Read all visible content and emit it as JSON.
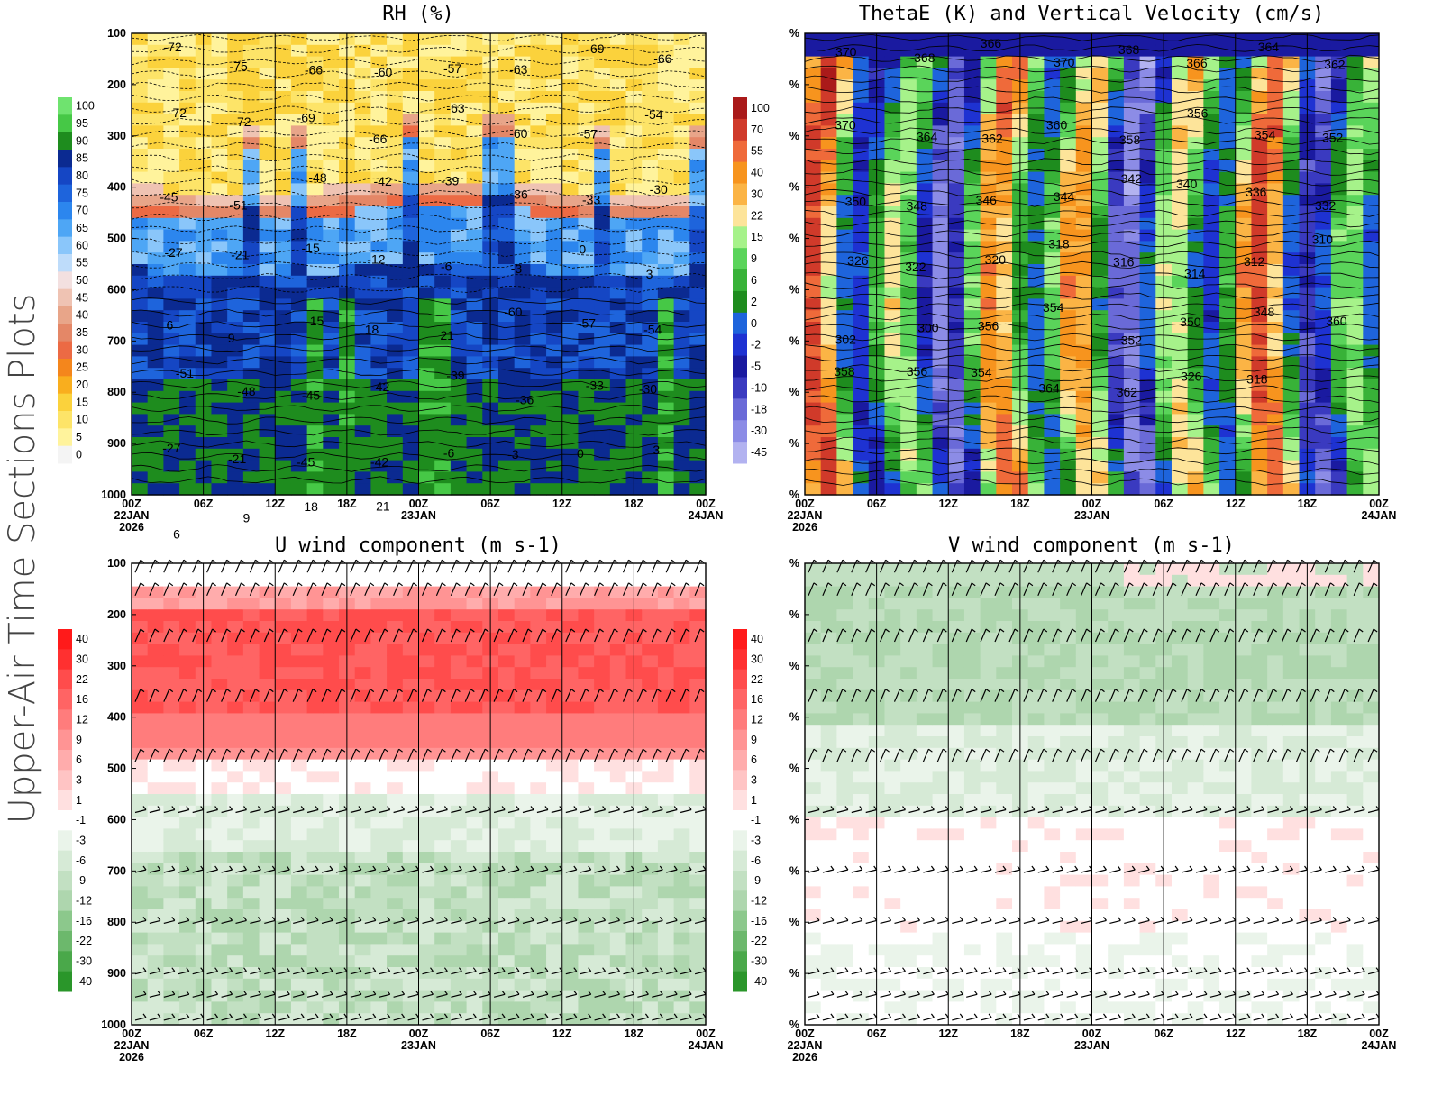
{
  "figure_title": "Upper-Air Time Sections Plots",
  "x_ticks": [
    "00Z",
    "06Z",
    "12Z",
    "18Z",
    "00Z",
    "06Z",
    "12Z",
    "18Z",
    "00Z"
  ],
  "x_dates": {
    "start_day": "22JAN",
    "start_year": "2026",
    "mid_day": "23JAN",
    "end_day": "24JAN"
  },
  "chart_data": [
    {
      "id": "rh",
      "type": "heatmap",
      "title": "RH (%)",
      "y_ticks": [
        "100",
        "200",
        "300",
        "400",
        "500",
        "600",
        "700",
        "800",
        "900",
        "1000"
      ],
      "ylim": [
        100,
        1000
      ],
      "colorbar": {
        "labels": [
          "100",
          "95",
          "90",
          "85",
          "80",
          "75",
          "70",
          "65",
          "60",
          "55",
          "50",
          "45",
          "40",
          "35",
          "30",
          "25",
          "20",
          "15",
          "10",
          "5",
          "0"
        ],
        "colors": [
          "#6fe36f",
          "#46c846",
          "#1e8c1e",
          "#0b2a91",
          "#1546c4",
          "#1e64dc",
          "#2c86ee",
          "#4ea6f5",
          "#8ac6fa",
          "#bedcfa",
          "#f3e0e0",
          "#efc3b3",
          "#e8a589",
          "#e48767",
          "#ec6a44",
          "#f4861c",
          "#f9ae1e",
          "#fbd23c",
          "#fde468",
          "#fff39c",
          "#f4f4f4"
        ]
      },
      "contour_labels": [
        "-72",
        "-75",
        "-66",
        "-60",
        "-57",
        "-63",
        "-69",
        "-66",
        "-72",
        "-72",
        "-69",
        "-66",
        "-63",
        "-60",
        "-57",
        "-54",
        "-45",
        "-51",
        "-48",
        "-42",
        "-39",
        "-36",
        "-33",
        "-30",
        "-27",
        "-21",
        "-15",
        "-12",
        "-6",
        "-3",
        "0",
        "3",
        "6",
        "9",
        "15",
        "18",
        "21",
        "-60",
        "-57",
        "-54",
        "-51",
        "-48",
        "-45",
        "-42",
        "-39",
        "-36",
        "-33",
        "-30",
        "-27",
        "-21",
        "-45",
        "-42",
        "-6",
        "-3",
        "0",
        "3",
        "6",
        "9",
        "18",
        "21"
      ]
    },
    {
      "id": "thetae",
      "type": "heatmap",
      "title": "ThetaE (K) and Vertical Velocity (cm/s)",
      "y_ticks": [
        "%",
        "%",
        "%",
        "%",
        "%",
        "%",
        "%",
        "%",
        "%",
        "%"
      ],
      "colorbar": {
        "labels": [
          "100",
          "70",
          "55",
          "40",
          "30",
          "22",
          "15",
          "9",
          "6",
          "2",
          "0",
          "-2",
          "-5",
          "-10",
          "-18",
          "-30",
          "-45"
        ],
        "colors": [
          "#aa1a1a",
          "#d03a2a",
          "#ef6a3a",
          "#f7941e",
          "#fbb445",
          "#fde49a",
          "#a6f28a",
          "#5ad45a",
          "#38b238",
          "#1e8c1e",
          "#1e64dc",
          "#1e32d2",
          "#1a1aa0",
          "#3a3ac0",
          "#6a6ad8",
          "#8c8ce6",
          "#b2b2f0"
        ]
      },
      "contour_labels": [
        "370",
        "368",
        "366",
        "370",
        "368",
        "366",
        "364",
        "362",
        "370",
        "364",
        "362",
        "360",
        "358",
        "356",
        "354",
        "352",
        "350",
        "348",
        "346",
        "344",
        "342",
        "340",
        "336",
        "332",
        "326",
        "322",
        "320",
        "318",
        "316",
        "314",
        "312",
        "310",
        "302",
        "300",
        "356",
        "354",
        "352",
        "350",
        "348",
        "360",
        "358",
        "356",
        "354",
        "364",
        "362",
        "326",
        "318"
      ]
    },
    {
      "id": "u",
      "type": "heatmap",
      "title": "U wind component (m s-1)",
      "y_ticks": [
        "100",
        "200",
        "300",
        "400",
        "500",
        "600",
        "700",
        "800",
        "900",
        "1000"
      ],
      "colorbar": {
        "labels": [
          "40",
          "30",
          "22",
          "16",
          "12",
          "9",
          "6",
          "3",
          "1",
          "-1",
          "-3",
          "-6",
          "-9",
          "-12",
          "-16",
          "-22",
          "-30",
          "-40"
        ],
        "colors": [
          "#ff1a1a",
          "#ff3030",
          "#ff4c4c",
          "#ff6464",
          "#ff7c7c",
          "#ff9494",
          "#ffacac",
          "#ffc4c4",
          "#ffe0e0",
          "#ffffff",
          "#eaf4ea",
          "#d6ead6",
          "#c2e0c2",
          "#aed6ae",
          "#8cc88c",
          "#6cb86c",
          "#4aa84a",
          "#2a962a"
        ]
      }
    },
    {
      "id": "v",
      "type": "heatmap",
      "title": "V wind component (m s-1)",
      "y_ticks": [
        "%",
        "%",
        "%",
        "%",
        "%",
        "%",
        "%",
        "%",
        "%",
        "%"
      ],
      "colorbar": {
        "labels": [
          "40",
          "30",
          "22",
          "16",
          "12",
          "9",
          "6",
          "3",
          "1",
          "-1",
          "-3",
          "-6",
          "-9",
          "-12",
          "-16",
          "-22",
          "-30",
          "-40"
        ],
        "colors": [
          "#ff1a1a",
          "#ff3030",
          "#ff4c4c",
          "#ff6464",
          "#ff7c7c",
          "#ff9494",
          "#ffacac",
          "#ffc4c4",
          "#ffe0e0",
          "#ffffff",
          "#eaf4ea",
          "#d6ead6",
          "#c2e0c2",
          "#aed6ae",
          "#8cc88c",
          "#6cb86c",
          "#4aa84a",
          "#2a962a"
        ]
      }
    }
  ]
}
